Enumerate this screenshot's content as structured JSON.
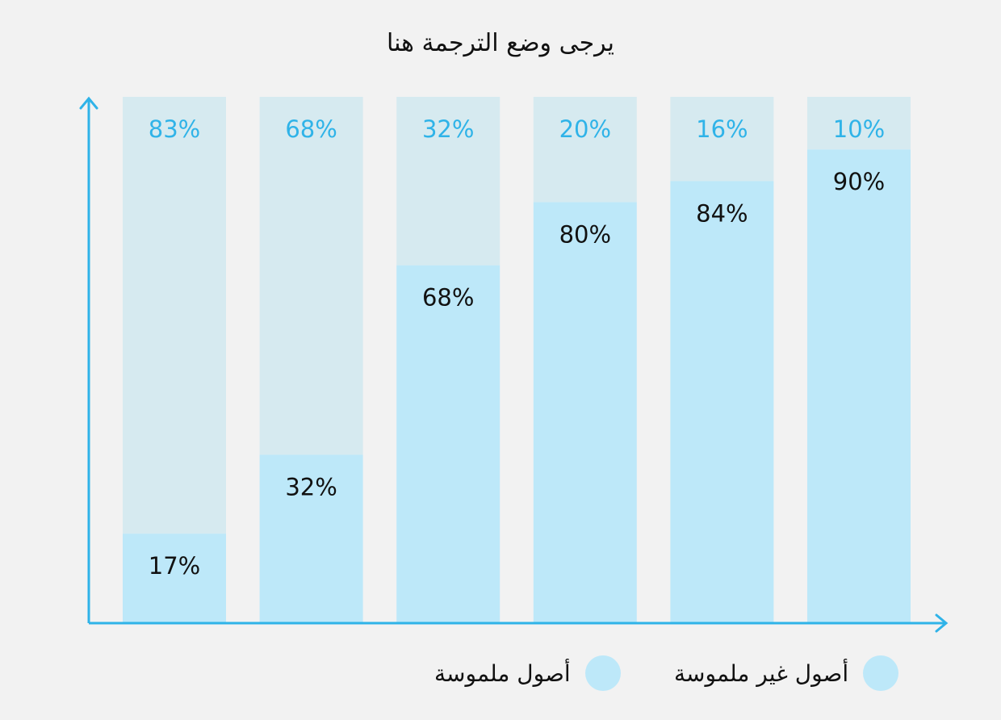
{
  "chart_data": {
    "type": "bar",
    "stacked": true,
    "title": "يرجى وضع الترجمة هنا",
    "categories": [
      "",
      "",
      "",
      "",
      "",
      ""
    ],
    "series": [
      {
        "name": "أصول ملموسة",
        "values": [
          83,
          68,
          32,
          20,
          16,
          10
        ],
        "labels": [
          "83%",
          "68%",
          "32%",
          "20%",
          "16%",
          "10%"
        ],
        "color": "#d6eaf0",
        "label_color": "#2fb3e8"
      },
      {
        "name": "أصول غير ملموسة",
        "values": [
          17,
          32,
          68,
          80,
          84,
          90
        ],
        "labels": [
          "17%",
          "32%",
          "68%",
          "80%",
          "84%",
          "90%"
        ],
        "color": "#bde8f9",
        "label_color": "#111111"
      }
    ],
    "ylim": [
      0,
      100
    ],
    "axis_color": "#2fb3e8",
    "grid": false,
    "legend_position": "bottom-right"
  },
  "legend": {
    "items": [
      {
        "label": "أصول غير ملموسة"
      },
      {
        "label": "أصول ملموسة"
      }
    ]
  }
}
